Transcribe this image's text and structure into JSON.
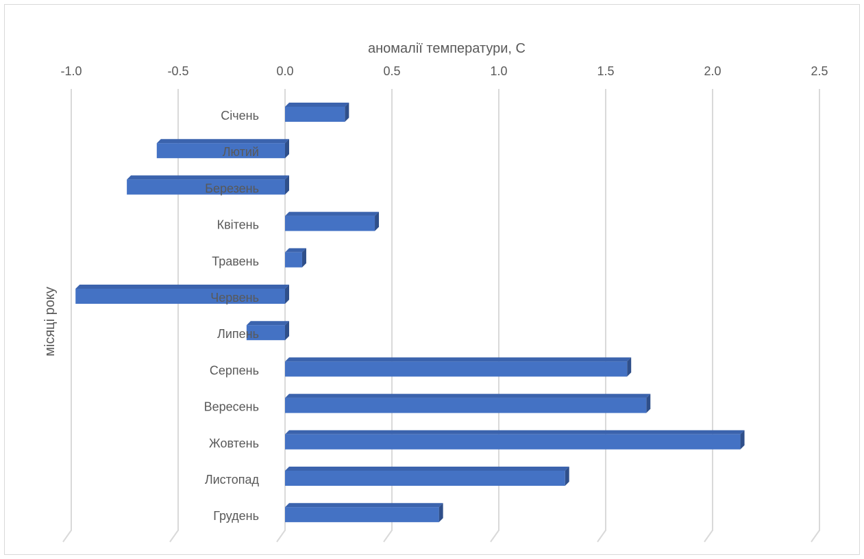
{
  "chart_data": {
    "type": "bar",
    "orientation": "horizontal",
    "style": "3d",
    "xlabel": "аномалії температури, С",
    "ylabel": "місяці року",
    "xlim": [
      -1.0,
      2.5
    ],
    "x_ticks": [
      "-1.0",
      "-0.5",
      "0.0",
      "0.5",
      "1.0",
      "1.5",
      "2.0",
      "2.5"
    ],
    "x_axis_position": "top",
    "grid": true,
    "categories": [
      "Січень",
      "Лютий",
      "Березень",
      "Квітень",
      "Травень",
      "Червень",
      "Липень",
      "Серпень",
      "Вересень",
      "Жовтень",
      "Листопад",
      "Грудень"
    ],
    "values": [
      0.28,
      -0.6,
      -0.74,
      0.42,
      0.08,
      -0.98,
      -0.18,
      1.6,
      1.69,
      2.13,
      1.31,
      0.72
    ],
    "colors": {
      "bar_front": "#4472C4",
      "bar_top": "#3B63AD",
      "bar_side": "#2F4F8A",
      "grid": "#d9d9d9",
      "text": "#595959"
    }
  }
}
